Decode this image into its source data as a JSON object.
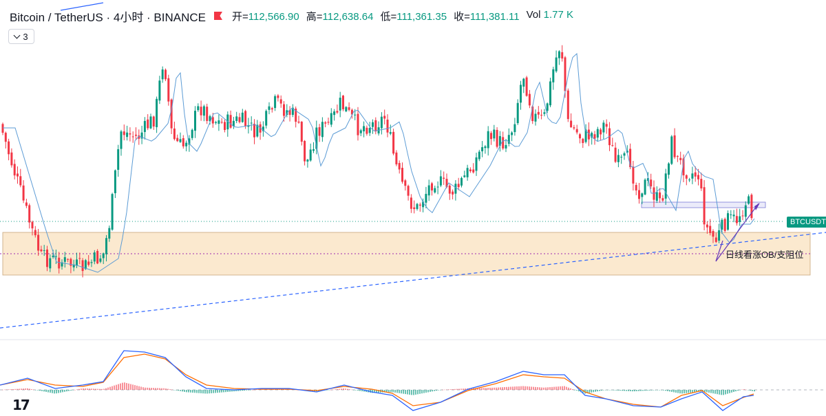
{
  "header": {
    "symbol": "Bitcoin / TetherUS · 4小时 · BINANCE",
    "open_label": "开=",
    "open": "112,566.90",
    "high_label": "高=",
    "high": "112,638.64",
    "low_label": "低=",
    "low": "111,361.35",
    "close_label": "收=",
    "close": "111,381.11",
    "vol_label": "Vol",
    "vol": "1.77 K"
  },
  "indicators_count": "3",
  "price_tag": "BTCUSDT",
  "annotation": "日线看涨OB/支阻位",
  "colors": {
    "up": "#089981",
    "down": "#f23645",
    "ma": "#5b9bd5",
    "zone_fill": "#fbe9cf",
    "zone_border": "#c8a57a",
    "trend": "#2962ff",
    "macd": "#2962ff",
    "signal": "#ff6d00"
  },
  "chart_data": {
    "type": "candlestick",
    "series": [
      {
        "name": "BTCUSDT",
        "values": [
          [
            0,
            180
          ],
          [
            45,
            330
          ],
          [
            60,
            375
          ],
          [
            90,
            380
          ],
          [
            120,
            390
          ],
          [
            150,
            370
          ],
          [
            160,
            320
          ],
          [
            175,
            190
          ],
          [
            200,
            200
          ],
          [
            225,
            170
          ],
          [
            238,
            80
          ],
          [
            250,
            200
          ],
          [
            265,
            215
          ],
          [
            290,
            155
          ],
          [
            320,
            180
          ],
          [
            350,
            175
          ],
          [
            375,
            195
          ],
          [
            400,
            150
          ],
          [
            430,
            170
          ],
          [
            445,
            240
          ],
          [
            460,
            190
          ],
          [
            480,
            180
          ],
          [
            495,
            150
          ],
          [
            520,
            185
          ],
          [
            545,
            180
          ],
          [
            560,
            170
          ],
          [
            575,
            240
          ],
          [
            590,
            285
          ],
          [
            605,
            305
          ],
          [
            630,
            260
          ],
          [
            660,
            280
          ],
          [
            690,
            235
          ],
          [
            710,
            195
          ],
          [
            730,
            210
          ],
          [
            745,
            185
          ],
          [
            760,
            105
          ],
          [
            775,
            170
          ],
          [
            790,
            175
          ],
          [
            805,
            95
          ],
          [
            815,
            60
          ],
          [
            825,
            180
          ],
          [
            845,
            200
          ],
          [
            860,
            195
          ],
          [
            880,
            180
          ],
          [
            895,
            240
          ],
          [
            915,
            230
          ],
          [
            925,
            280
          ],
          [
            940,
            265
          ],
          [
            960,
            300
          ],
          [
            975,
            205
          ],
          [
            985,
            235
          ],
          [
            1000,
            250
          ],
          [
            1015,
            255
          ],
          [
            1025,
            330
          ],
          [
            1040,
            350
          ],
          [
            1055,
            320
          ],
          [
            1070,
            320
          ],
          [
            1085,
            290
          ],
          [
            1095,
            315
          ]
        ]
      }
    ],
    "macd": [
      [
        0,
        560
      ],
      [
        40,
        550
      ],
      [
        80,
        565
      ],
      [
        120,
        560
      ],
      [
        150,
        555
      ],
      [
        180,
        510
      ],
      [
        210,
        512
      ],
      [
        240,
        520
      ],
      [
        270,
        548
      ],
      [
        300,
        565
      ],
      [
        340,
        567
      ],
      [
        380,
        565
      ],
      [
        420,
        565
      ],
      [
        460,
        570
      ],
      [
        500,
        560
      ],
      [
        540,
        570
      ],
      [
        570,
        575
      ],
      [
        600,
        597
      ],
      [
        640,
        585
      ],
      [
        680,
        566
      ],
      [
        720,
        555
      ],
      [
        760,
        540
      ],
      [
        790,
        545
      ],
      [
        820,
        545
      ],
      [
        850,
        575
      ],
      [
        880,
        580
      ],
      [
        920,
        590
      ],
      [
        960,
        592
      ],
      [
        990,
        580
      ],
      [
        1020,
        570
      ],
      [
        1050,
        597
      ],
      [
        1080,
        577
      ],
      [
        1095,
        575
      ]
    ],
    "signal": [
      [
        0,
        560
      ],
      [
        40,
        552
      ],
      [
        80,
        560
      ],
      [
        120,
        562
      ],
      [
        150,
        556
      ],
      [
        180,
        520
      ],
      [
        210,
        515
      ],
      [
        240,
        522
      ],
      [
        270,
        545
      ],
      [
        300,
        560
      ],
      [
        340,
        565
      ],
      [
        380,
        566
      ],
      [
        420,
        566
      ],
      [
        460,
        568
      ],
      [
        500,
        562
      ],
      [
        540,
        566
      ],
      [
        570,
        572
      ],
      [
        600,
        590
      ],
      [
        640,
        585
      ],
      [
        680,
        568
      ],
      [
        720,
        558
      ],
      [
        760,
        545
      ],
      [
        790,
        548
      ],
      [
        820,
        550
      ],
      [
        850,
        570
      ],
      [
        880,
        580
      ],
      [
        920,
        588
      ],
      [
        960,
        592
      ],
      [
        990,
        575
      ],
      [
        1020,
        568
      ],
      [
        1050,
        590
      ],
      [
        1080,
        578
      ],
      [
        1095,
        573
      ]
    ]
  }
}
